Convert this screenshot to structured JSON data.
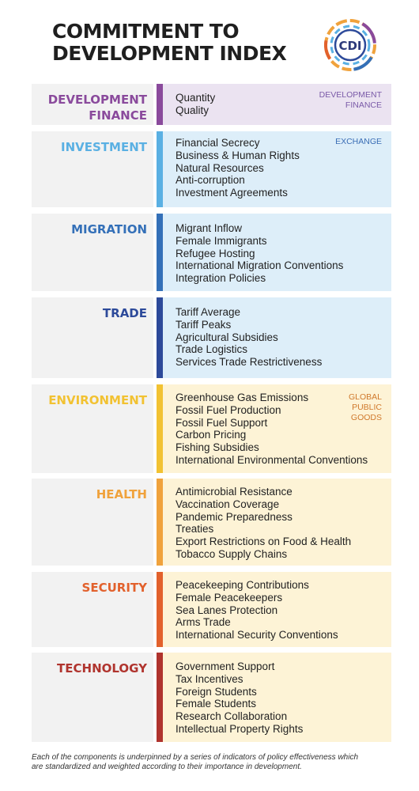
{
  "header": {
    "title_line1": "COMMITMENT TO",
    "title_line2": "DEVELOPMENT INDEX",
    "logo_text": "CDI"
  },
  "groups": {
    "development_finance": [
      "DEVELOPMENT",
      "FINANCE"
    ],
    "exchange": "EXCHANGE",
    "global_public_goods": [
      "GLOBAL",
      "PUBLIC",
      "GOODS"
    ]
  },
  "components": [
    {
      "label": [
        "DEVELOPMENT",
        "FINANCE"
      ],
      "color": "#8a4a9c",
      "bg": "#ebe3f1",
      "items": [
        "Quantity",
        "Quality"
      ]
    },
    {
      "label": [
        "INVESTMENT"
      ],
      "color": "#5ab0e3",
      "bg": "#ddeef9",
      "items": [
        "Financial Secrecy",
        "Business & Human Rights",
        "Natural Resources",
        "Anti-corruption",
        "Investment Agreements"
      ]
    },
    {
      "label": [
        "MIGRATION"
      ],
      "color": "#3470b8",
      "bg": "#ddeef9",
      "items": [
        "Migrant Inflow",
        "Female Immigrants",
        "Refugee Hosting",
        "International Migration Conventions",
        "Integration Policies"
      ]
    },
    {
      "label": [
        "TRADE"
      ],
      "color": "#2d4a9a",
      "bg": "#ddeef9",
      "items": [
        "Tariff Average",
        "Tariff Peaks",
        "Agricultural Subsidies",
        "Trade Logistics",
        "Services Trade Restrictiveness"
      ]
    },
    {
      "label": [
        "ENVIRONMENT"
      ],
      "color": "#f2c232",
      "bg": "#fdf3d6",
      "items": [
        "Greenhouse Gas Emissions",
        "Fossil Fuel Production",
        "Fossil Fuel Support",
        "Carbon Pricing",
        "Fishing Subsidies",
        "International Environmental Conventions"
      ]
    },
    {
      "label": [
        "HEALTH"
      ],
      "color": "#f0a23c",
      "bg": "#fdf3d6",
      "items": [
        "Antimicrobial Resistance",
        "Vaccination Coverage",
        "Pandemic Preparedness",
        "Treaties",
        "Export Restrictions on Food & Health",
        "Tobacco Supply Chains"
      ]
    },
    {
      "label": [
        "SECURITY"
      ],
      "color": "#e2612c",
      "bg": "#fdf3d6",
      "items": [
        "Peacekeeping Contributions",
        "Female Peacekeepers",
        "Sea Lanes Protection",
        "Arms Trade",
        "International Security Conventions"
      ]
    },
    {
      "label": [
        "TECHNOLOGY"
      ],
      "color": "#b0342e",
      "bg": "#fdf3d6",
      "items": [
        "Government Support",
        "Tax Incentives",
        "Foreign Students",
        "Female Students",
        "Research Collaboration",
        "Intellectual Property Rights"
      ]
    }
  ],
  "footer": {
    "line1": "Each of the components is underpinned by a series of indicators of policy effectiveness which",
    "line2": "are standardized and weighted according to their importance in development."
  },
  "colors": {
    "title": "#1f1f1f",
    "dev_finance_tag": "#7a5aa8",
    "exchange_tag": "#3a6db5",
    "gpg_tag": "#d0792c"
  }
}
